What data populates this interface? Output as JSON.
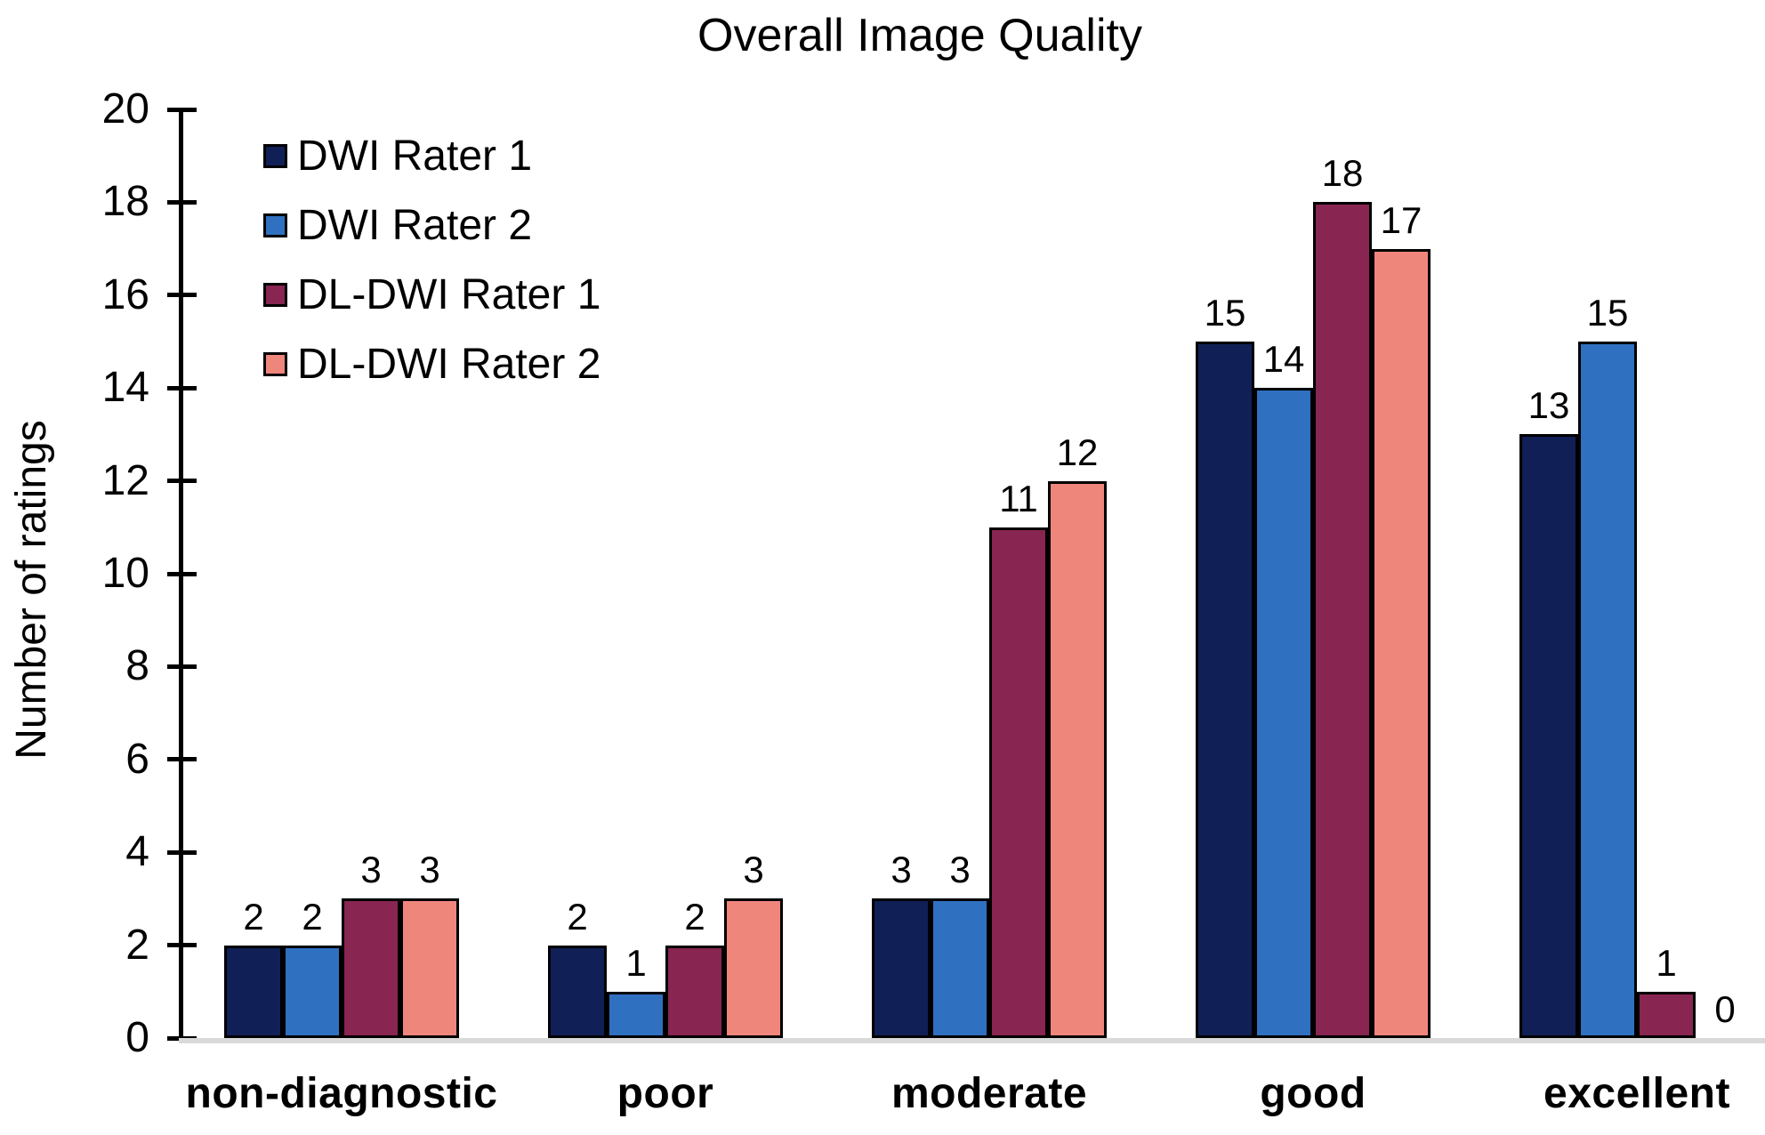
{
  "chart_data": {
    "type": "bar",
    "title": "Overall Image Quality",
    "xlabel": "",
    "ylabel": "Number of ratings",
    "ylim": [
      0,
      20
    ],
    "ytick_step": 2,
    "grid": false,
    "legend_position": "top-left-inside",
    "bar_value_labels_shown": true,
    "categories": [
      "non-diagnostic",
      "poor",
      "moderate",
      "good",
      "excellent"
    ],
    "series": [
      {
        "name": "DWI Rater 1",
        "color": "#102056",
        "values": [
          2,
          2,
          3,
          15,
          13
        ]
      },
      {
        "name": "DWI Rater 2",
        "color": "#3070C0",
        "values": [
          2,
          1,
          3,
          14,
          15
        ]
      },
      {
        "name": "DL-DWI Rater 1",
        "color": "#882551",
        "values": [
          3,
          2,
          11,
          18,
          1
        ]
      },
      {
        "name": "DL-DWI Rater 2",
        "color": "#EF867C",
        "values": [
          3,
          3,
          12,
          17,
          0
        ]
      }
    ],
    "colors": {
      "bar_border": "#000000",
      "axis": "#000000",
      "baseline": "#D9D9D9",
      "text": "#000000",
      "background": "#FFFFFF"
    }
  }
}
